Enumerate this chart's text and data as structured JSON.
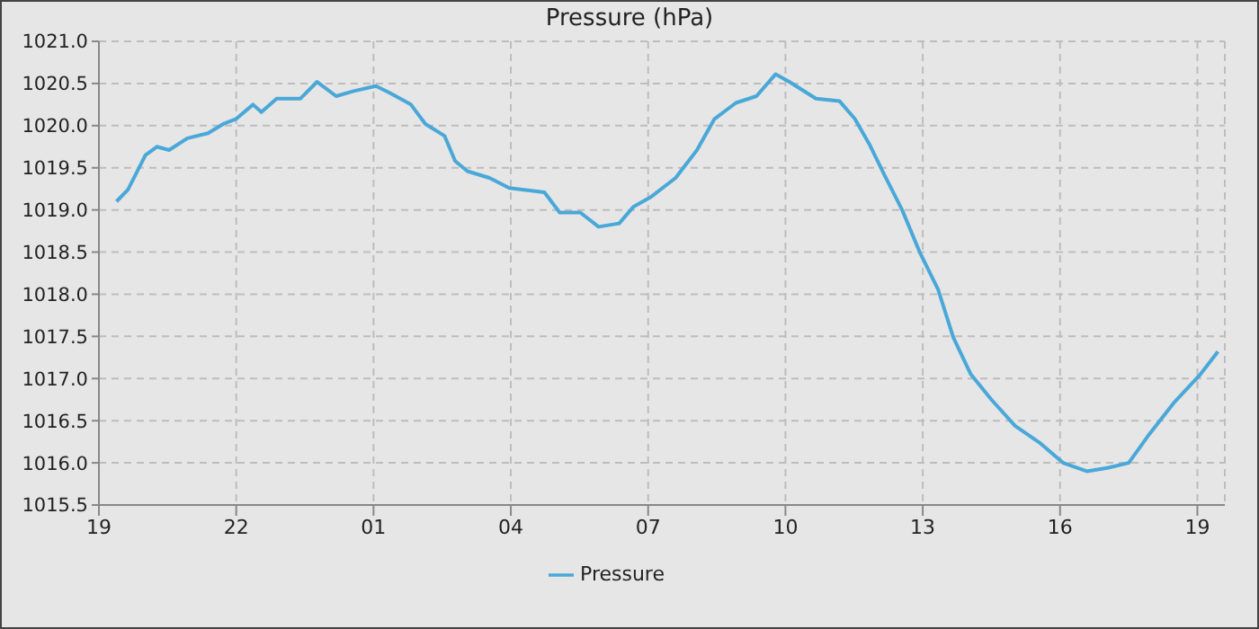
{
  "chart_data": {
    "type": "line",
    "title": "Pressure (hPa)",
    "x": [
      "--01-01T19:23",
      "--01-01T19:38",
      "--01-01T19:47",
      "--01-01T20:01",
      "--01-01T20:16",
      "--01-01T20:32",
      "--01-01T20:56",
      "--01-01T21:23",
      "--01-01T21:43",
      "--01-01T22:00",
      "--01-01T22:22",
      "--01-01T22:33",
      "--01-01T22:53",
      "--01-01T23:24",
      "--01-01T23:46",
      "--01-02T00:11",
      "--01-02T00:34",
      "--01-02T01:03",
      "--01-02T01:21",
      "--01-02T01:49",
      "--01-02T02:08",
      "--01-02T02:33",
      "--01-02T02:47",
      "--01-02T03:03",
      "--01-02T03:32",
      "--01-02T03:58",
      "--01-02T04:44",
      "--01-02T05:04",
      "--01-02T05:31",
      "--01-02T05:55",
      "--01-02T06:22",
      "--01-02T06:41",
      "--01-02T07:03",
      "--01-02T07:36",
      "--01-02T08:04",
      "--01-02T08:27",
      "--01-02T08:55",
      "--01-02T09:22",
      "--01-02T09:47",
      "--01-02T10:05",
      "--01-02T10:40",
      "--01-02T11:11",
      "--01-02T11:31",
      "--01-02T11:50",
      "--01-02T12:10",
      "--01-02T12:33",
      "--01-02T12:56",
      "--01-02T13:20",
      "--01-02T13:40",
      "--01-02T14:03",
      "--01-02T14:30",
      "--01-02T15:01",
      "--01-02T15:33",
      "--01-02T16:04",
      "--01-02T16:35",
      "--01-02T17:02",
      "--01-02T17:30",
      "--01-02T17:57",
      "--01-02T18:29",
      "--01-02T19:04",
      "--01-02T19:27"
    ],
    "series": [
      {
        "name": "Pressure",
        "color": "#4aa8d8",
        "values": [
          1019.1,
          1019.24,
          1019.4,
          1019.65,
          1019.75,
          1019.71,
          1019.85,
          1019.91,
          1020.02,
          1020.08,
          1020.25,
          1020.16,
          1020.32,
          1020.32,
          1020.52,
          1020.35,
          1020.41,
          1020.47,
          1020.39,
          1020.25,
          1020.02,
          1019.88,
          1019.58,
          1019.46,
          1019.38,
          1019.26,
          1019.21,
          1018.97,
          1018.97,
          1018.8,
          1018.84,
          1019.04,
          1019.15,
          1019.38,
          1019.71,
          1020.08,
          1020.27,
          1020.35,
          1020.61,
          1020.52,
          1020.32,
          1020.29,
          1020.08,
          1019.78,
          1019.41,
          1019.0,
          1018.5,
          1018.06,
          1017.49,
          1017.05,
          1016.75,
          1016.44,
          1016.24,
          1016.0,
          1015.9,
          1015.94,
          1016.0,
          1016.34,
          1016.71,
          1017.05,
          1017.32
        ]
      }
    ],
    "xlim": [
      "--01-01T19:00",
      "--01-02T19:36"
    ],
    "xticks": [
      {
        "value": "--01-01T19:00",
        "label": "19"
      },
      {
        "value": "--01-01T22:00",
        "label": "22"
      },
      {
        "value": "--01-02T01:00",
        "label": "01"
      },
      {
        "value": "--01-02T04:00",
        "label": "04"
      },
      {
        "value": "--01-02T07:00",
        "label": "07"
      },
      {
        "value": "--01-02T10:00",
        "label": "10"
      },
      {
        "value": "--01-02T13:00",
        "label": "13"
      },
      {
        "value": "--01-02T16:00",
        "label": "16"
      },
      {
        "value": "--01-02T19:00",
        "label": "19"
      }
    ],
    "ylim": [
      1015.5,
      1021.0
    ],
    "yticks": [
      {
        "value": 1015.5,
        "label": "1015.5"
      },
      {
        "value": 1016,
        "label": "1016.0"
      },
      {
        "value": 1016.5,
        "label": "1016.5"
      },
      {
        "value": 1017,
        "label": "1017.0"
      },
      {
        "value": 1017.5,
        "label": "1017.5"
      },
      {
        "value": 1018,
        "label": "1018.0"
      },
      {
        "value": 1018.5,
        "label": "1018.5"
      },
      {
        "value": 1019,
        "label": "1019.0"
      },
      {
        "value": 1019.5,
        "label": "1019.5"
      },
      {
        "value": 1020,
        "label": "1020.0"
      },
      {
        "value": 1020.5,
        "label": "1020.5"
      },
      {
        "value": 1021,
        "label": "1021.0"
      }
    ],
    "grid": true,
    "legend": "bottom",
    "marker": "none",
    "line_style": "solid"
  }
}
